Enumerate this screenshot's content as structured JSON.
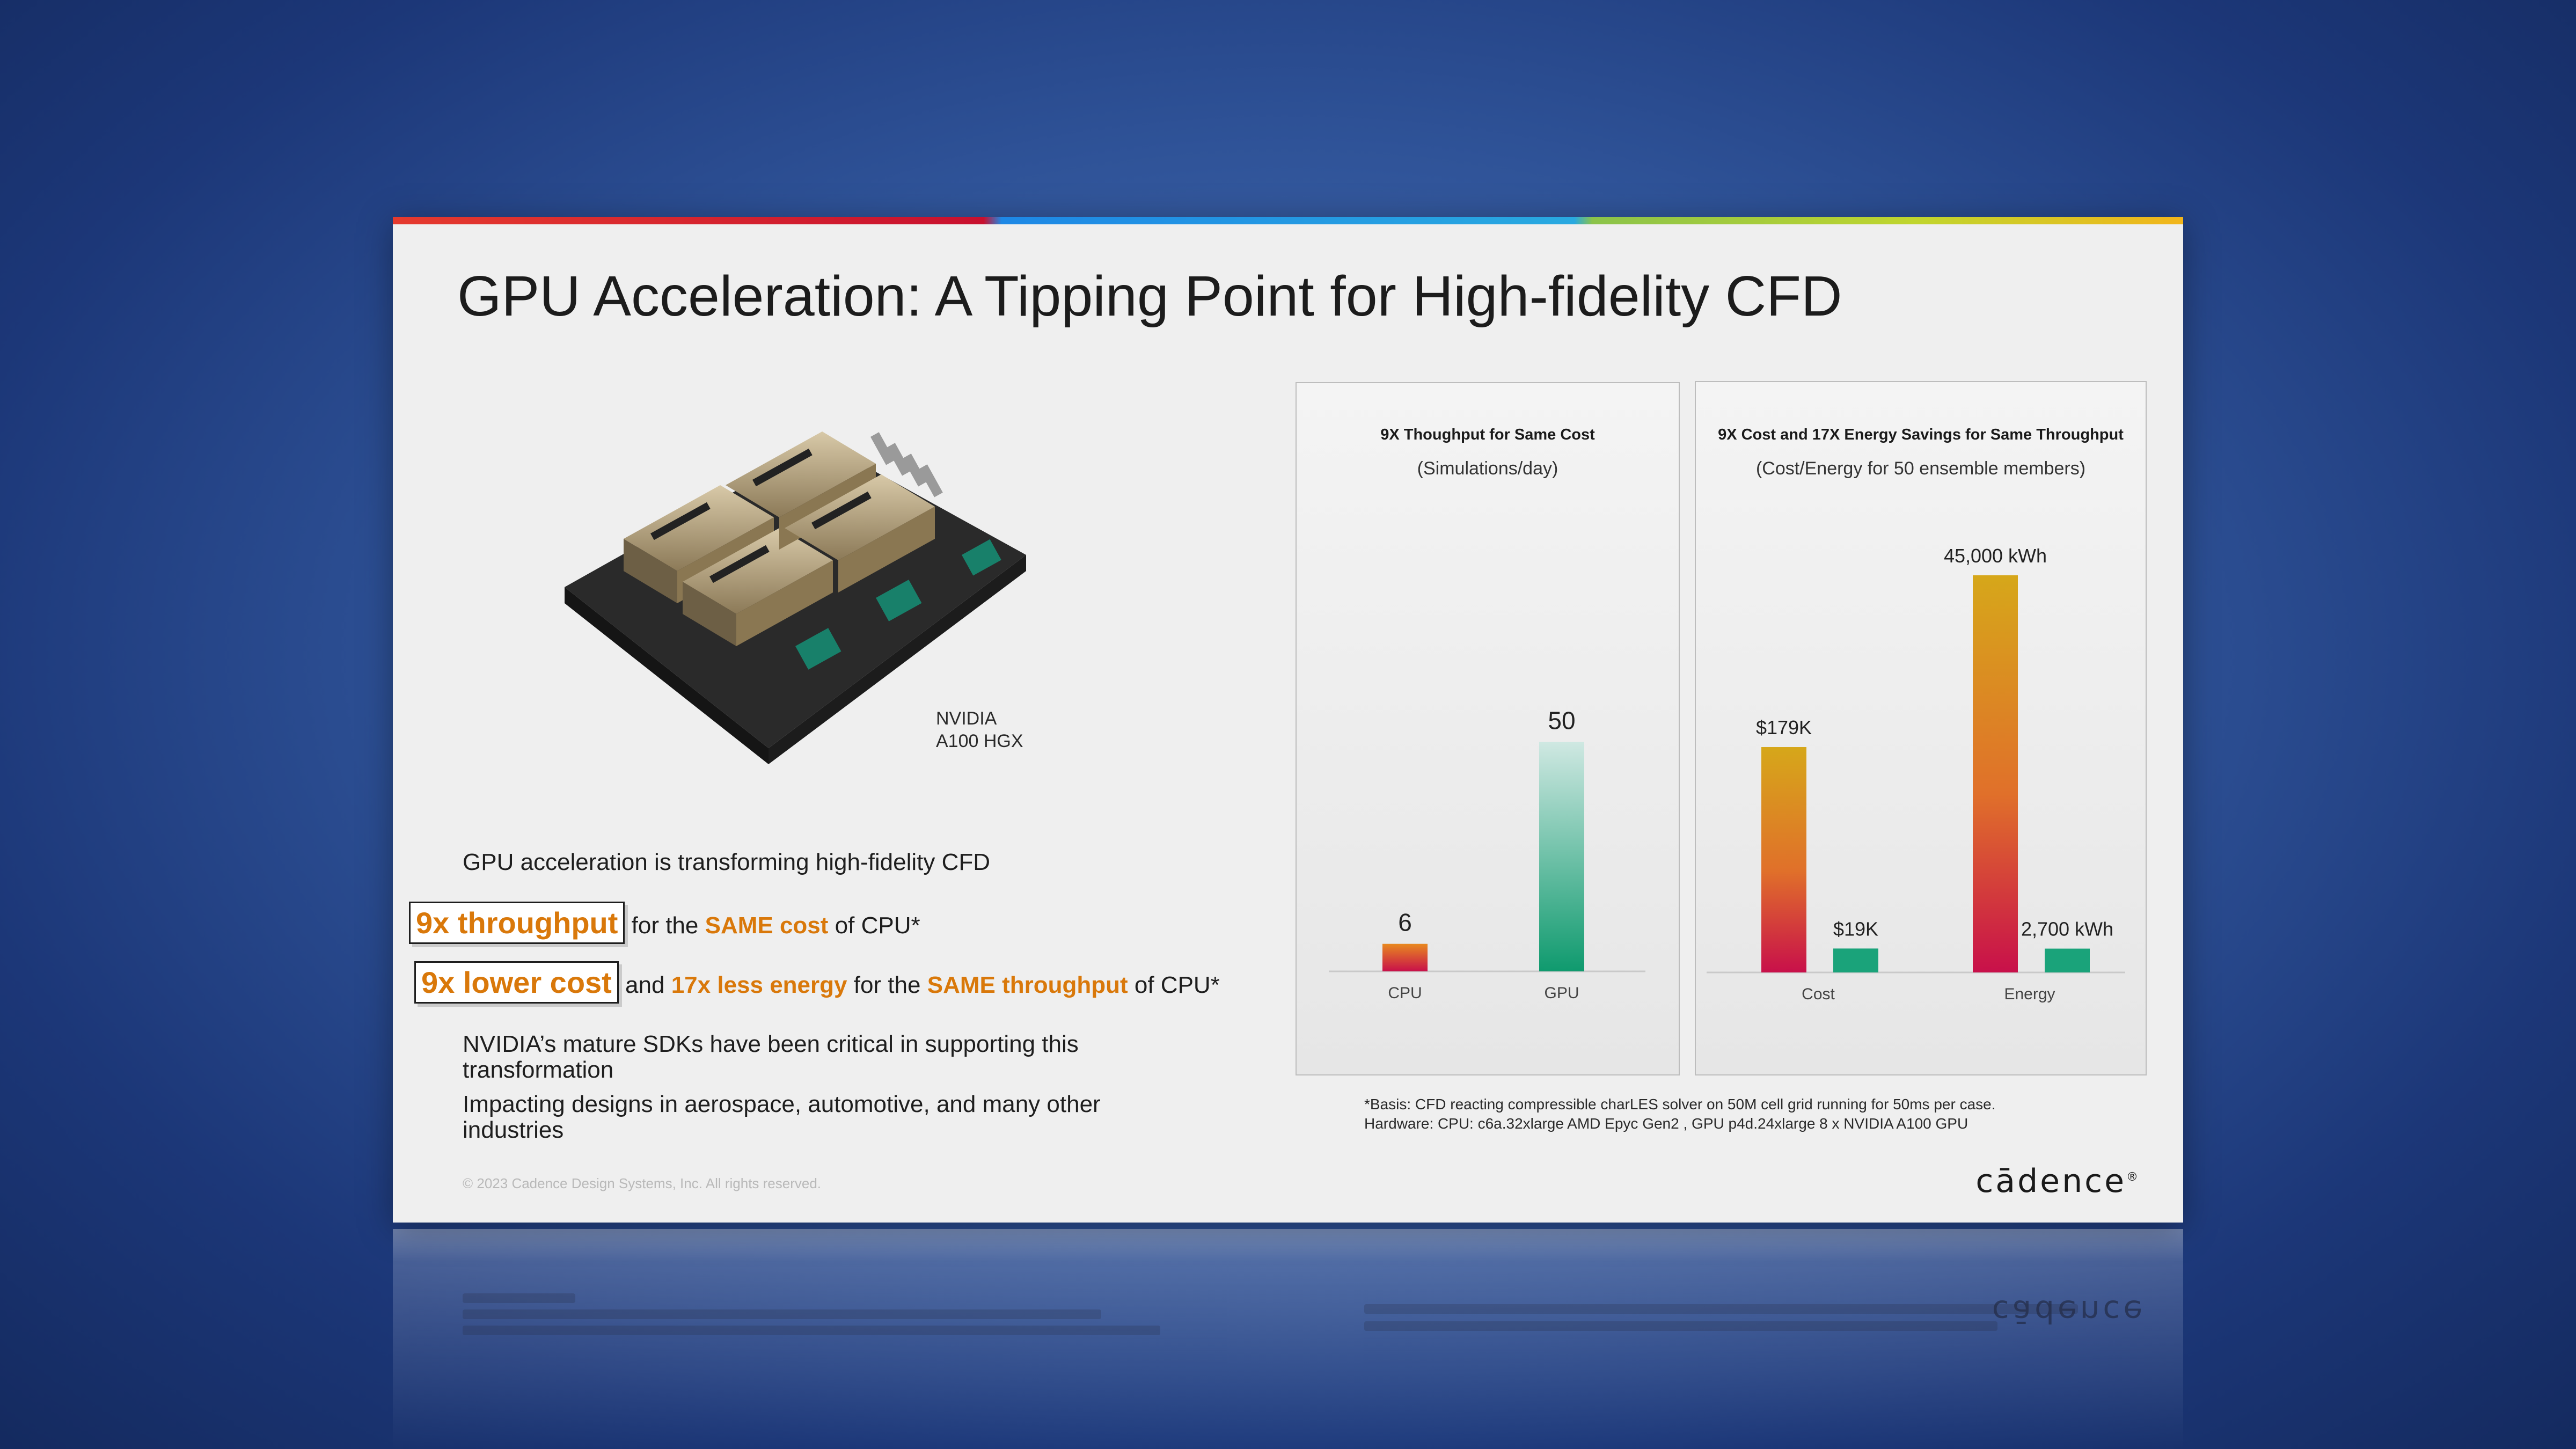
{
  "title": "GPU Acceleration: A Tipping Point for High-fidelity CFD",
  "image_caption": {
    "line1": "NVIDIA",
    "line2": "A100 HGX"
  },
  "bullets": {
    "b1": "GPU acceleration is transforming high-fidelity CFD",
    "b2": {
      "box": "9x throughput",
      "t1": "for the",
      "hl1": "SAME cost",
      "t2": "of CPU*"
    },
    "b3": {
      "box": "9x lower cost",
      "t1": "and",
      "hl1": "17x less energy",
      "t2": "for the",
      "hl2": "SAME throughput",
      "t3": "of CPU*"
    },
    "b4": "NVIDIA’s mature SDKs have been critical in supporting this transformation",
    "b5": "Impacting designs in aerospace, automotive, and many other industries"
  },
  "copyright": "© 2023 Cadence Design Systems, Inc. All rights reserved.",
  "footnote": {
    "line1": "*Basis: CFD reacting compressible charLES solver on 50M cell grid running for 50ms per case.",
    "line2": "Hardware: CPU: c6a.32xlarge AMD Epyc Gen2 , GPU p4d.24xlarge 8 x NVIDIA A100 GPU"
  },
  "logo": "cādence",
  "colors": {
    "accent_orange": "#d9780a",
    "cpu_red": "#c8102e",
    "gpu_green": "#1aa37a",
    "gold": "#d6a71a"
  },
  "chart_data": [
    {
      "type": "bar",
      "title": "9X Thoughput for Same Cost",
      "subtitle": "(Simulations/day)",
      "categories": [
        "CPU",
        "GPU"
      ],
      "values": [
        6,
        50
      ],
      "value_labels": [
        "6",
        "50"
      ],
      "ylim": [
        0,
        55
      ],
      "grid": false
    },
    {
      "type": "bar",
      "title": "9X Cost and 17X Energy Savings for Same Throughput",
      "subtitle": "(Cost/Energy for 50 ensemble members)",
      "categories": [
        "Cost",
        "Energy"
      ],
      "bars": [
        {
          "category": "Cost",
          "kind": "CPU",
          "value": 179,
          "label": "$179K"
        },
        {
          "category": "Cost",
          "kind": "GPU",
          "value": 19,
          "label": "$19K"
        },
        {
          "category": "Energy",
          "kind": "CPU",
          "value": 45000,
          "label": "45,000 kWh"
        },
        {
          "category": "Energy",
          "kind": "GPU",
          "value": 2700,
          "label": "2,700 kWh"
        }
      ],
      "grid": false
    }
  ]
}
